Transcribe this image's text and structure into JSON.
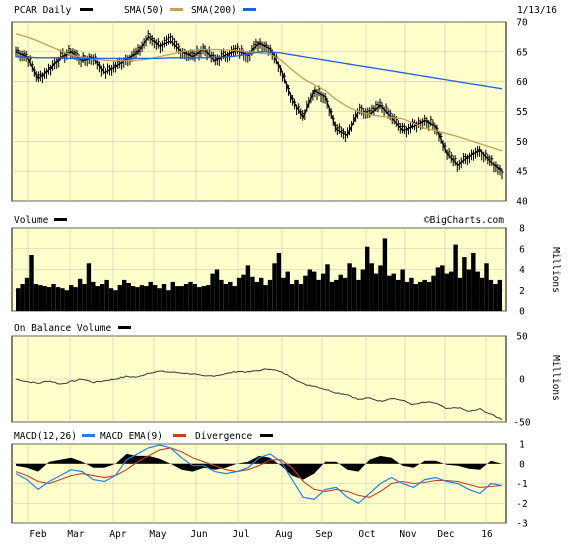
{
  "header": {
    "ticker_label": "PCAR Daily",
    "sma50_label": "SMA(50)",
    "sma200_label": "SMA(200)",
    "date": "1/13/16"
  },
  "colors": {
    "panel_bg": "#ffffcc",
    "sma50": "#c8a050",
    "sma200": "#2060e0",
    "macd": "#2080e0",
    "macd_ema": "#c04020",
    "grid": "#c8c8b0"
  },
  "volume_panel": {
    "label": "Volume",
    "units": "Millions",
    "watermark": "©BigCharts.com"
  },
  "obv_panel": {
    "label": "On Balance Volume",
    "units": "Millions"
  },
  "macd_panel": {
    "label": "MACD(12,26)",
    "ema_label": "MACD EMA(9)",
    "divergence_label": "Divergence"
  },
  "chart_data": [
    {
      "type": "line",
      "title": "PCAR Daily",
      "ylim": [
        40,
        70
      ],
      "yticks": [
        70,
        65,
        60,
        55,
        50,
        45,
        40
      ],
      "xticks": [
        "Feb",
        "Mar",
        "Apr",
        "May",
        "Jun",
        "Jul",
        "Aug",
        "Sep",
        "Oct",
        "Nov",
        "Dec",
        "16"
      ],
      "series": [
        {
          "name": "PCAR",
          "values": [
            65,
            64.2,
            60.5,
            62,
            64,
            65,
            63.5,
            64,
            61.5,
            62.5,
            63.8,
            64.8,
            67.5,
            66,
            66.8,
            65,
            64.2,
            65.5,
            63.5,
            64.5,
            65.2,
            64.5,
            66.5,
            65.5,
            62,
            57,
            54,
            58.5,
            57.5,
            52,
            51,
            55,
            54.5,
            56,
            54,
            51.8,
            52.5,
            53.5,
            52.5,
            48,
            46,
            47.5,
            48.5,
            46.5,
            45
          ]
        },
        {
          "name": "SMA(50)",
          "values": [
            68,
            67.5,
            66.8,
            66,
            65.2,
            64.5,
            64,
            63.8,
            63.6,
            63.5,
            63.5,
            63.6,
            63.8,
            64.2,
            64.6,
            65,
            65.3,
            65.4,
            65.4,
            65.3,
            65.2,
            65,
            64.8,
            64.6,
            63.6,
            62,
            60.5,
            59.5,
            58.5,
            57,
            55.8,
            55,
            54.5,
            54.2,
            54,
            53.8,
            53,
            52.2,
            51.8,
            51.3,
            50.8,
            50.2,
            49.6,
            49,
            48.4
          ]
        },
        {
          "name": "SMA(200)",
          "values": [
            64.2,
            64.1,
            64,
            64,
            64,
            63.9,
            63.9,
            63.9,
            63.9,
            63.9,
            63.9,
            63.9,
            63.9,
            63.9,
            64,
            64,
            64,
            64,
            64.1,
            64.1,
            64.3,
            64.6,
            65,
            65,
            64.8,
            64.5,
            64.2,
            63.9,
            63.6,
            63.3,
            63,
            62.7,
            62.4,
            62.1,
            61.8,
            61.5,
            61.2,
            60.9,
            60.6,
            60.3,
            60,
            59.7,
            59.4,
            59.1,
            58.8
          ]
        }
      ]
    },
    {
      "type": "bar",
      "title": "Volume",
      "ylabel": "Millions",
      "ylim": [
        0,
        8
      ],
      "yticks": [
        8,
        6,
        4,
        2,
        0
      ],
      "values": [
        2.2,
        2.6,
        3.2,
        5.4,
        2.6,
        2.5,
        2.4,
        2.3,
        2.6,
        2.3,
        2.2,
        2.0,
        2.5,
        2.3,
        3.1,
        2.6,
        4.6,
        2.8,
        2.4,
        2.6,
        3.0,
        2.2,
        2.0,
        2.5,
        3.0,
        2.7,
        2.4,
        2.3,
        2.5,
        2.4,
        2.8,
        2.5,
        2.2,
        2.6,
        2.0,
        2.8,
        2.4,
        2.4,
        2.6,
        2.8,
        2.6,
        2.3,
        2.4,
        2.5,
        3.6,
        4.0,
        3.0,
        2.6,
        2.8,
        2.4,
        3.2,
        3.5,
        4.4,
        3.3,
        2.8,
        3.2,
        2.5,
        3.0,
        4.6,
        5.6,
        3.2,
        3.8,
        2.6,
        3.0,
        2.6,
        3.4,
        4.0,
        3.8,
        3.0,
        3.6,
        4.5,
        2.8,
        3.0,
        3.5,
        3.2,
        4.6,
        4.2,
        3.0,
        4.0,
        6.2,
        4.6,
        3.6,
        4.4,
        7.0,
        3.4,
        3.6,
        3.0,
        4.0,
        2.8,
        3.2,
        2.6,
        2.8,
        3.0,
        2.8,
        3.4,
        4.2,
        4.4,
        3.6,
        3.8,
        6.4,
        3.2,
        5.2,
        4.0,
        5.6,
        3.8,
        3.2,
        4.6,
        3.0,
        2.6,
        3.0
      ]
    },
    {
      "type": "line",
      "title": "On Balance Volume",
      "ylabel": "Millions",
      "ylim": [
        -50,
        50
      ],
      "yticks": [
        50,
        0,
        -50
      ],
      "series": [
        {
          "name": "On Balance Volume",
          "values": [
            0,
            -3,
            -5,
            -2,
            -6,
            -3,
            0,
            -4,
            -2,
            0,
            3,
            2,
            7,
            9,
            8,
            7,
            6,
            3,
            4,
            6,
            9,
            8,
            10,
            12,
            8,
            2,
            -6,
            -8,
            -12,
            -16,
            -18,
            -24,
            -22,
            -26,
            -22,
            -25,
            -30,
            -27,
            -28,
            -35,
            -33,
            -38,
            -35,
            -41,
            -47
          ]
        }
      ]
    },
    {
      "type": "line",
      "title": "MACD(12,26)",
      "ylim": [
        -3,
        1
      ],
      "yticks": [
        1,
        0,
        -1,
        -2,
        -3
      ],
      "series": [
        {
          "name": "MACD(12,26)",
          "values": [
            -0.5,
            -0.8,
            -1.3,
            -0.9,
            -0.6,
            -0.3,
            -0.4,
            -0.8,
            -0.9,
            -0.6,
            0.2,
            0.5,
            0.8,
            0.95,
            0.8,
            0.3,
            -0.1,
            -0.1,
            -0.4,
            -0.5,
            -0.4,
            -0.2,
            0.3,
            0.5,
            0.1,
            -0.8,
            -1.7,
            -1.8,
            -1.3,
            -1.2,
            -1.7,
            -2.0,
            -1.5,
            -1.0,
            -0.7,
            -1.0,
            -1.2,
            -0.8,
            -0.7,
            -0.9,
            -1.0,
            -1.3,
            -1.5,
            -1.0,
            -1.1
          ]
        },
        {
          "name": "MACD EMA(9)",
          "values": [
            -0.4,
            -0.6,
            -0.9,
            -1.0,
            -0.8,
            -0.6,
            -0.5,
            -0.6,
            -0.7,
            -0.6,
            -0.3,
            0.1,
            0.4,
            0.7,
            0.8,
            0.6,
            0.3,
            0.1,
            -0.1,
            -0.3,
            -0.4,
            -0.3,
            -0.1,
            0.2,
            0.2,
            -0.2,
            -0.9,
            -1.3,
            -1.4,
            -1.3,
            -1.4,
            -1.6,
            -1.7,
            -1.4,
            -1.0,
            -0.9,
            -1.0,
            -0.95,
            -0.85,
            -0.85,
            -0.9,
            -1.05,
            -1.2,
            -1.15,
            -1.1
          ]
        },
        {
          "name": "Divergence",
          "values": [
            -0.1,
            -0.2,
            -0.4,
            0.1,
            0.2,
            0.3,
            0.1,
            -0.2,
            -0.2,
            0,
            0.5,
            0.4,
            0.4,
            0.25,
            0,
            -0.3,
            -0.4,
            -0.2,
            -0.3,
            -0.2,
            0,
            0.1,
            0.4,
            0.3,
            -0.1,
            -0.6,
            -0.8,
            -0.5,
            0.1,
            0.1,
            -0.3,
            -0.4,
            0.2,
            0.4,
            0.3,
            -0.1,
            -0.2,
            0.15,
            0.15,
            -0.05,
            -0.1,
            -0.25,
            -0.3,
            0.15,
            0
          ]
        }
      ]
    }
  ]
}
